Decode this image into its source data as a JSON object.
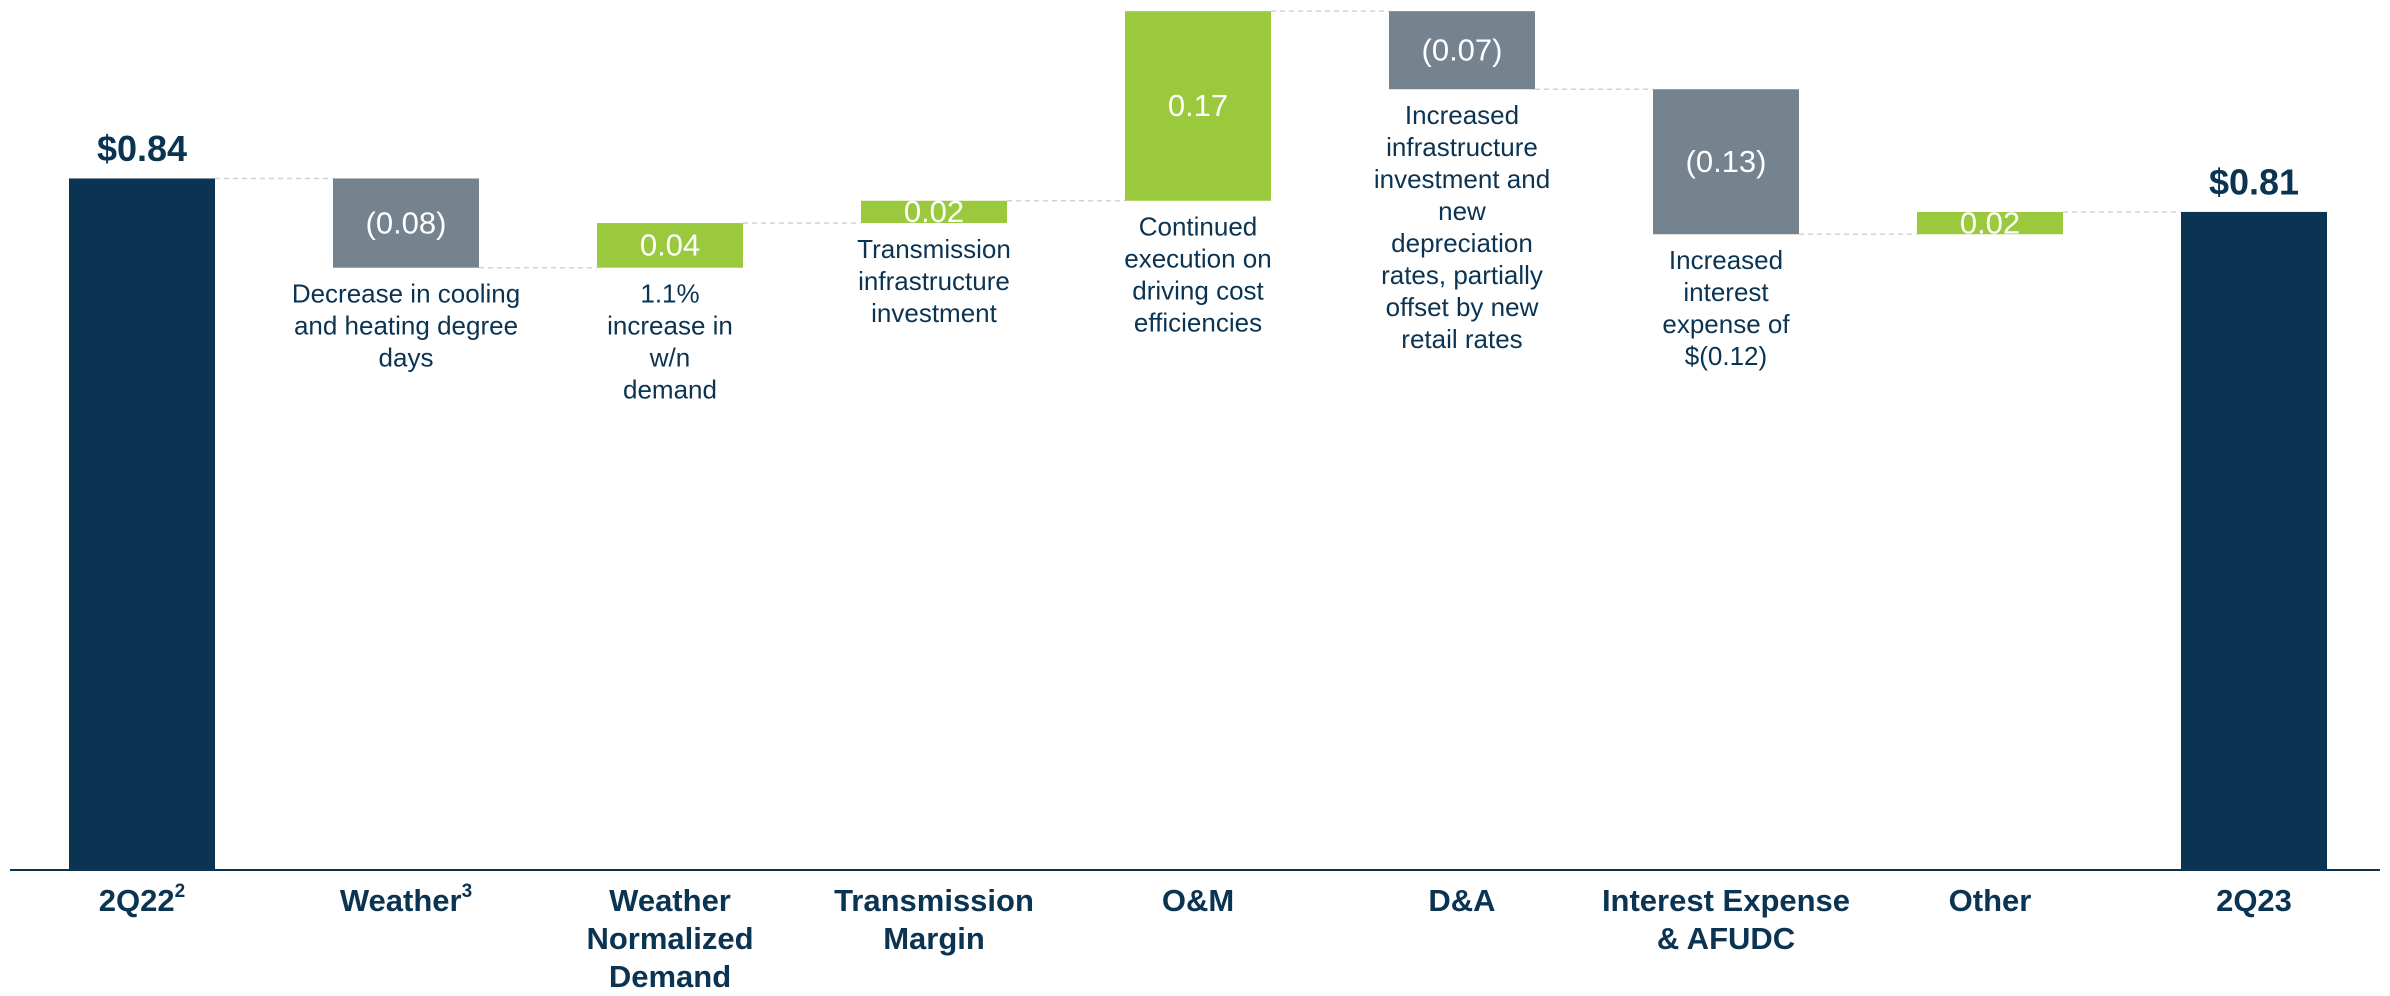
{
  "chart_data": {
    "type": "waterfall",
    "categories": [
      "2Q22",
      "Weather",
      "Weather Normalized Demand",
      "Transmission Margin",
      "O&M",
      "D&A",
      "Interest Expense & AFUDC",
      "Other",
      "2Q23"
    ],
    "category_superscripts": [
      "2",
      "3",
      null,
      null,
      null,
      null,
      null,
      null,
      null
    ],
    "kinds": [
      "total",
      "delta",
      "delta",
      "delta",
      "delta",
      "delta",
      "delta",
      "delta",
      "total"
    ],
    "values": [
      0.84,
      -0.08,
      0.04,
      0.02,
      0.17,
      -0.07,
      -0.13,
      0.02,
      0.81
    ],
    "value_labels": [
      "$0.84",
      "(0.08)",
      "0.04",
      "0.02",
      "0.17",
      "(0.07)",
      "(0.13)",
      "0.02",
      "$0.81"
    ],
    "annotations": [
      null,
      [
        "Decrease in cooling",
        "and heating degree",
        "days"
      ],
      [
        "1.1%",
        "increase in",
        "w/n",
        "demand"
      ],
      [
        "Transmission",
        "infrastructure",
        "investment"
      ],
      [
        "Continued",
        "execution on",
        "driving cost",
        "efficiencies"
      ],
      [
        "Increased",
        "infrastructure",
        "investment and",
        "new",
        "depreciation",
        "rates, partially",
        "offset by new",
        "retail rates"
      ],
      [
        "Increased",
        "interest",
        "expense of",
        "$(0.12)"
      ],
      null,
      null
    ],
    "colors": {
      "total": "#0b3352",
      "increase": "#9bc93e",
      "decrease": "#75838f"
    },
    "ylim": [
      0.22,
      1.0
    ]
  }
}
